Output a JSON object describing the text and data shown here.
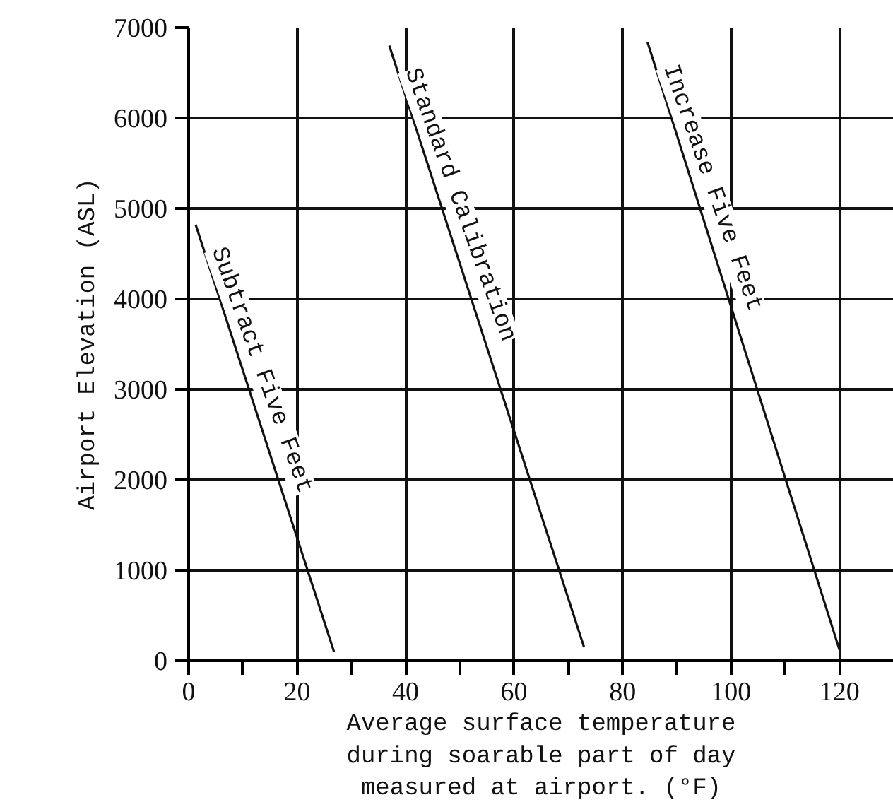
{
  "chart_data": {
    "type": "line",
    "xlabel": "Average surface temperature\nduring soarable part of day\nmeasured at airport. (°F)",
    "ylabel": "Airport Elevation (ASL)",
    "series": [
      {
        "name": "Subtract Five Feet",
        "color": "#111111",
        "x": [
          1.3,
          26.8
        ],
        "values": [
          4820,
          100
        ]
      },
      {
        "name": "Standard Calibration",
        "color": "#111111",
        "x": [
          37,
          72.9
        ],
        "values": [
          6800,
          150
        ]
      },
      {
        "name": "Increase Five Feet",
        "color": "#111111",
        "x": [
          84.6,
          120
        ],
        "values": [
          6840,
          120
        ]
      }
    ],
    "xlim": [
      0,
      130
    ],
    "ylim": [
      0,
      7000
    ],
    "xticks": [
      0,
      {
        "value": 10,
        "label": null
      },
      20,
      {
        "value": 30,
        "label": null
      },
      40,
      {
        "value": 50,
        "label": null
      },
      60,
      {
        "value": 70,
        "label": null
      },
      80,
      {
        "value": 90,
        "label": null
      },
      100,
      {
        "value": 110,
        "label": null
      },
      120
    ],
    "yticks": [
      0,
      1000,
      2000,
      3000,
      4000,
      5000,
      6000,
      7000
    ],
    "grid": true,
    "marker": "none",
    "line_style": "solid"
  }
}
